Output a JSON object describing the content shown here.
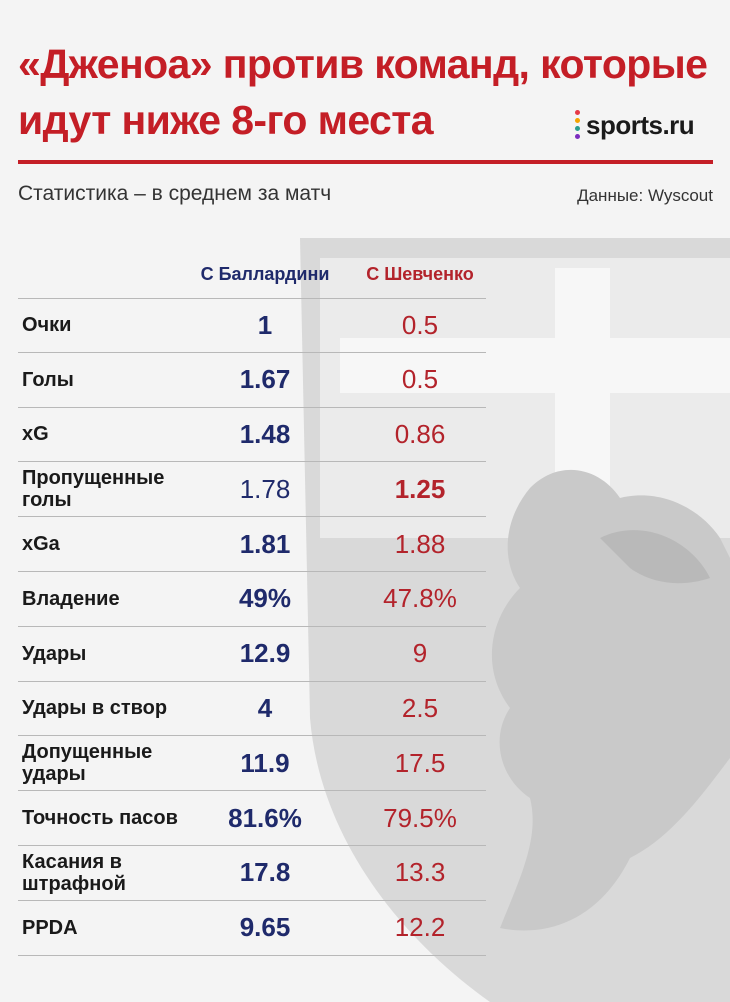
{
  "header": {
    "title": "«Дженоа» против команд, которые идут ниже 8-го места",
    "logo_text": "sports.ru",
    "subtitle": "Статистика – в среднем за матч",
    "source": "Данные: Wyscout"
  },
  "columns": {
    "a": "С Баллардини",
    "b": "С Шевченко"
  },
  "colors": {
    "title_red": "#c41e26",
    "col_a_navy": "#1f2a6b",
    "col_b_red": "#b3232b"
  },
  "rows": [
    {
      "label": "Очки",
      "a": "1",
      "b": "0.5",
      "a_bold": true,
      "b_bold": false
    },
    {
      "label": "Голы",
      "a": "1.67",
      "b": "0.5",
      "a_bold": true,
      "b_bold": false
    },
    {
      "label": "xG",
      "a": "1.48",
      "b": "0.86",
      "a_bold": true,
      "b_bold": false
    },
    {
      "label": "Пропущенные голы",
      "a": "1.78",
      "b": "1.25",
      "a_bold": false,
      "b_bold": true
    },
    {
      "label": "xGa",
      "a": "1.81",
      "b": "1.88",
      "a_bold": true,
      "b_bold": false
    },
    {
      "label": "Владение",
      "a": "49%",
      "b": "47.8%",
      "a_bold": true,
      "b_bold": false
    },
    {
      "label": "Удары",
      "a": "12.9",
      "b": "9",
      "a_bold": true,
      "b_bold": false
    },
    {
      "label": "Удары в створ",
      "a": "4",
      "b": "2.5",
      "a_bold": true,
      "b_bold": false
    },
    {
      "label": "Допущенные удары",
      "a": "11.9",
      "b": "17.5",
      "a_bold": true,
      "b_bold": false
    },
    {
      "label": "Точность пасов",
      "a": "81.6%",
      "b": "79.5%",
      "a_bold": true,
      "b_bold": false
    },
    {
      "label": "Касания в штрафной",
      "a": "17.8",
      "b": "13.3",
      "a_bold": true,
      "b_bold": false
    },
    {
      "label": "PPDA",
      "a": "9.65",
      "b": "12.2",
      "a_bold": true,
      "b_bold": false
    }
  ]
}
